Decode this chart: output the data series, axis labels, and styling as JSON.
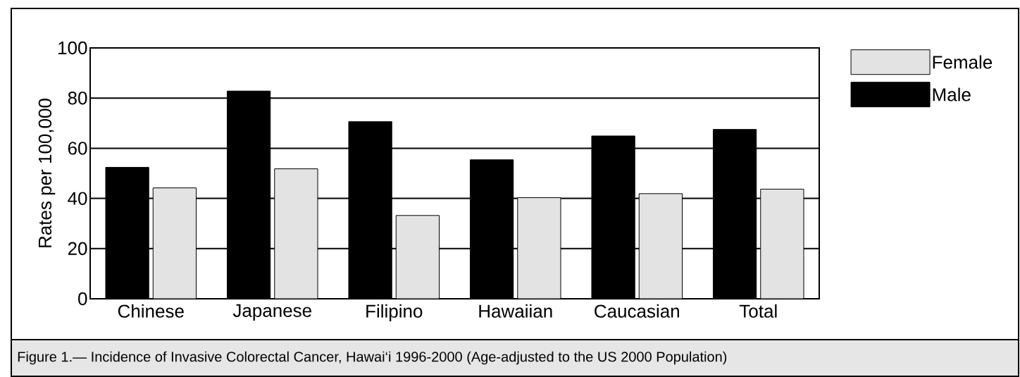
{
  "chart_data": {
    "type": "bar",
    "categories": [
      "Chinese",
      "Japanese",
      "Filipino",
      "Hawaiian",
      "Caucasian",
      "Total"
    ],
    "ylabel": "Rates per 100,000",
    "series": [
      {
        "name": "Male",
        "color": "#000000",
        "values": [
          52.4,
          82.8,
          70.6,
          55.4,
          64.9,
          67.5
        ]
      },
      {
        "name": "Female",
        "color": "#e3e3e3",
        "values": [
          44.2,
          51.8,
          33.2,
          40.3,
          41.9,
          43.7
        ]
      }
    ],
    "ylim": [
      0,
      100
    ],
    "yticks": [
      0,
      20,
      40,
      60,
      80,
      100
    ],
    "grid": "y",
    "legend": "top right",
    "annotations": [
      "Figure 1.— Incidence of Invasive Colorectal Cancer, Hawai‘i 1996-2000 (Age-adjusted to the US 2000 Population)"
    ]
  }
}
